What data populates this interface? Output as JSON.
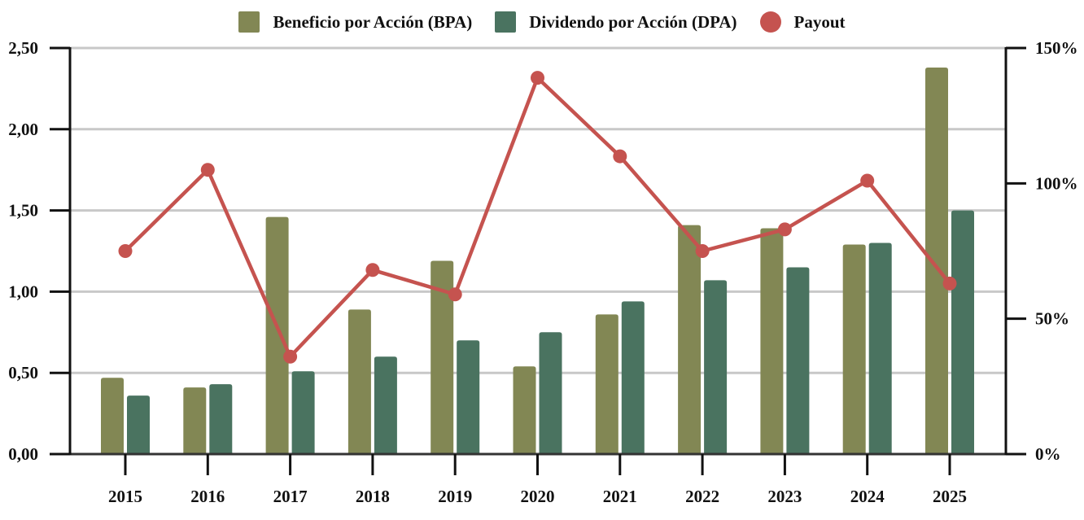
{
  "chart_data": {
    "type": "bar",
    "title": "",
    "xlabel": "",
    "ylabel": "",
    "categories": [
      "2015",
      "2016",
      "2017",
      "2018",
      "2019",
      "2020",
      "2021",
      "2022",
      "2023",
      "2024",
      "2025"
    ],
    "series": [
      {
        "name": "Beneficio por Acción (BPA)",
        "kind": "bar",
        "axis": "left",
        "color": "#828754",
        "values": [
          0.47,
          0.41,
          1.46,
          0.89,
          1.19,
          0.54,
          0.86,
          1.41,
          1.39,
          1.29,
          2.38
        ]
      },
      {
        "name": "Dividendo por Acción (DPA)",
        "kind": "bar",
        "axis": "left",
        "color": "#4A7360",
        "values": [
          0.36,
          0.43,
          0.51,
          0.6,
          0.7,
          0.75,
          0.94,
          1.07,
          1.15,
          1.3,
          1.5
        ]
      },
      {
        "name": "Payout",
        "kind": "line",
        "axis": "right",
        "color": "#C5534F",
        "unit": "%",
        "values": [
          75,
          105,
          36,
          68,
          59,
          139,
          110,
          75,
          83,
          101,
          63
        ]
      }
    ],
    "y_left": {
      "ylim": [
        0,
        2.5
      ],
      "ticks": [
        0,
        0.5,
        1,
        1.5,
        2,
        2.5
      ],
      "tick_labels": [
        "0,00",
        "0,50",
        "1,00",
        "1,50",
        "2,00",
        "2,50"
      ]
    },
    "y_right": {
      "ylim": [
        0,
        150
      ],
      "ticks": [
        0,
        50,
        100,
        150
      ],
      "tick_labels": [
        "0%",
        "50%",
        "100%",
        "150%"
      ]
    },
    "grid": true,
    "legend": {
      "position": "top-center",
      "entries": [
        "Beneficio por Acción (BPA)",
        "Dividendo por Acción (DPA)",
        "Payout"
      ]
    }
  },
  "colors": {
    "grid": "#C8C8C8",
    "axis": "#111111",
    "baseline": "#333333"
  }
}
